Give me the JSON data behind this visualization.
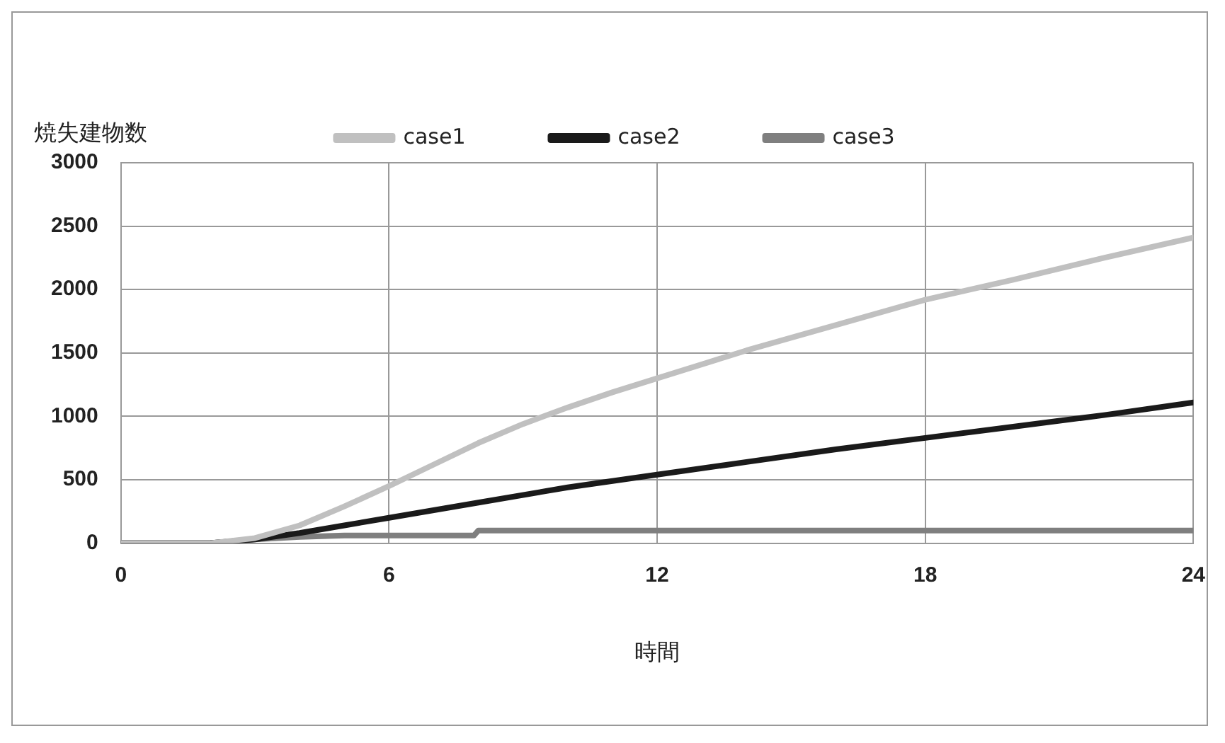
{
  "chart_data": {
    "type": "line",
    "xlabel": "時間",
    "ylabel": "焼失建物数",
    "xlim": [
      0,
      24
    ],
    "xticks": [
      0,
      6,
      12,
      18,
      24
    ],
    "ylim": [
      0,
      3000
    ],
    "yticks": [
      0,
      500,
      1000,
      1500,
      2000,
      2500,
      3000
    ],
    "grid": true,
    "legend": "top",
    "marker": "none",
    "line_style": "solid",
    "series": [
      {
        "name": "case1",
        "color": "#c0c0c0",
        "x": [
          0,
          2,
          3,
          4,
          5,
          6,
          7,
          8,
          9,
          10,
          11,
          12,
          14,
          16,
          18,
          20,
          22,
          24
        ],
        "values": [
          0,
          0,
          40,
          140,
          290,
          450,
          620,
          790,
          940,
          1070,
          1190,
          1300,
          1520,
          1720,
          1920,
          2080,
          2250,
          2410
        ]
      },
      {
        "name": "case2",
        "color": "#1a1a1a",
        "x": [
          0,
          2,
          3,
          4,
          5,
          6,
          8,
          10,
          12,
          14,
          16,
          18,
          20,
          22,
          24
        ],
        "values": [
          0,
          0,
          30,
          80,
          140,
          200,
          320,
          440,
          540,
          640,
          740,
          830,
          920,
          1010,
          1110
        ]
      },
      {
        "name": "case3",
        "color": "#7f7f7f",
        "x": [
          0,
          2,
          3,
          4,
          5,
          7.9,
          8,
          12,
          18,
          24
        ],
        "values": [
          0,
          0,
          30,
          50,
          60,
          60,
          100,
          100,
          100,
          100
        ]
      }
    ]
  }
}
